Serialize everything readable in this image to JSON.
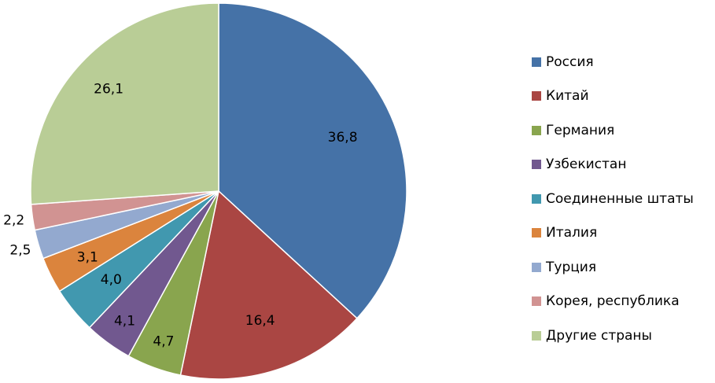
{
  "chart_data": {
    "type": "pie",
    "title": "",
    "legend_position": "right",
    "slices": [
      {
        "label": "Россия",
        "value": 36.8,
        "display": "36,8",
        "color": "#4572A7"
      },
      {
        "label": "Китай",
        "value": 16.4,
        "display": "16,4",
        "color": "#AA4643"
      },
      {
        "label": "Германия",
        "value": 4.7,
        "display": "4,7",
        "color": "#89A54E"
      },
      {
        "label": "Узбекистан",
        "value": 4.1,
        "display": "4,1",
        "color": "#71588F"
      },
      {
        "label": "Соединенные штаты",
        "value": 4.0,
        "display": "4,0",
        "color": "#4198AF"
      },
      {
        "label": "Италия",
        "value": 3.1,
        "display": "3,1",
        "color": "#DB843D"
      },
      {
        "label": "Турция",
        "value": 2.5,
        "display": "2,5",
        "color": "#93A9CF"
      },
      {
        "label": "Корея, республика",
        "value": 2.2,
        "display": "2,2",
        "color": "#D19392"
      },
      {
        "label": "Другие страны",
        "value": 26.1,
        "display": "26,1",
        "color": "#B9CD96"
      }
    ]
  }
}
